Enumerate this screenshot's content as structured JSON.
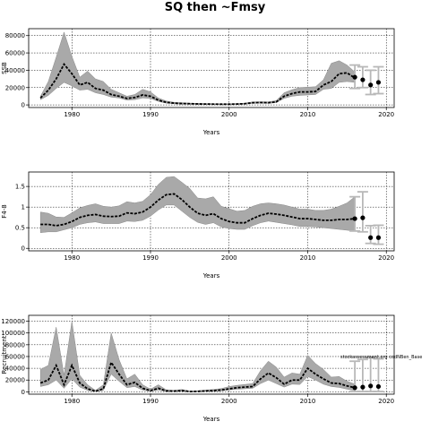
{
  "figure": {
    "title": "SQ then ~Fmsy"
  },
  "chart_data": [
    {
      "id": "ssb",
      "type": "line",
      "title": "",
      "xlabel": "Years",
      "ylabel": "SSB",
      "xlim": [
        1974.5,
        2021
      ],
      "ylim": [
        -3000,
        88000
      ],
      "xticks": [
        1980,
        1990,
        2000,
        2010,
        2020
      ],
      "yticks": [
        0,
        20000,
        40000,
        60000,
        80000
      ],
      "grid": true,
      "annotation": "",
      "series": [
        {
          "kind": "median",
          "x": [
            1976,
            1977,
            1978,
            1979,
            1980,
            1981,
            1982,
            1983,
            1984,
            1985,
            1986,
            1987,
            1988,
            1989,
            1990,
            1991,
            1992,
            1993,
            1994,
            1995,
            1996,
            1997,
            1998,
            1999,
            2000,
            2001,
            2002,
            2003,
            2004,
            2005,
            2006,
            2007,
            2008,
            2009,
            2010,
            2011,
            2012,
            2013,
            2014,
            2015,
            2016
          ],
          "y": [
            8000,
            17000,
            30000,
            47000,
            36000,
            23000,
            26000,
            19000,
            17000,
            12000,
            10000,
            7500,
            8500,
            11500,
            10000,
            5500,
            3000,
            2000,
            1600,
            1400,
            1100,
            1000,
            900,
            800,
            800,
            1000,
            1400,
            2500,
            2700,
            2500,
            3500,
            10000,
            13000,
            15000,
            15000,
            15500,
            23000,
            27000,
            36000,
            37000,
            31000
          ]
        },
        {
          "kind": "upper",
          "x": [
            1976,
            1977,
            1978,
            1979,
            1980,
            1981,
            1982,
            1983,
            1984,
            1985,
            1986,
            1987,
            1988,
            1989,
            1990,
            1991,
            1992,
            1993,
            1994,
            1995,
            1996,
            1997,
            1998,
            1999,
            2000,
            2001,
            2002,
            2003,
            2004,
            2005,
            2006,
            2007,
            2008,
            2009,
            2010,
            2011,
            2012,
            2013,
            2014,
            2015,
            2016
          ],
          "y": [
            10000,
            27000,
            55000,
            84000,
            56000,
            32000,
            39000,
            30000,
            27000,
            18000,
            14000,
            10000,
            12000,
            18000,
            15000,
            8000,
            4500,
            3000,
            2500,
            2000,
            1800,
            1500,
            1300,
            1200,
            1200,
            1500,
            2000,
            3500,
            3700,
            3500,
            5000,
            14000,
            17500,
            20000,
            20500,
            21000,
            29000,
            48000,
            51000,
            46000,
            38000
          ]
        },
        {
          "kind": "lower",
          "x": [
            1976,
            1977,
            1978,
            1979,
            1980,
            1981,
            1982,
            1983,
            1984,
            1985,
            1986,
            1987,
            1988,
            1989,
            1990,
            1991,
            1992,
            1993,
            1994,
            1995,
            1996,
            1997,
            1998,
            1999,
            2000,
            2001,
            2002,
            2003,
            2004,
            2005,
            2006,
            2007,
            2008,
            2009,
            2010,
            2011,
            2012,
            2013,
            2014,
            2015,
            2016
          ],
          "y": [
            6000,
            11000,
            19000,
            26000,
            22000,
            17000,
            18000,
            14000,
            12000,
            9000,
            8000,
            5500,
            6000,
            8000,
            7500,
            4000,
            2000,
            1300,
            1000,
            900,
            700,
            650,
            600,
            550,
            550,
            700,
            1000,
            1800,
            2000,
            1800,
            2600,
            7500,
            10000,
            11000,
            11500,
            12000,
            18000,
            19000,
            26000,
            27000,
            26000
          ]
        }
      ],
      "forecast": {
        "x": [
          2016,
          2017,
          2018,
          2019
        ],
        "y": [
          32000,
          29000,
          23000,
          26000
        ],
        "low": [
          19000,
          20000,
          12000,
          13000
        ],
        "high": [
          46000,
          44000,
          40000,
          44000
        ]
      }
    },
    {
      "id": "fbar",
      "type": "line",
      "title": "",
      "xlabel": "Years",
      "ylabel": "F4-8",
      "xlim": [
        1974.5,
        2021
      ],
      "ylim": [
        -0.06,
        1.85
      ],
      "xticks": [
        1980,
        1990,
        2000,
        2010,
        2020
      ],
      "yticks": [
        0,
        0.5,
        1,
        1.5
      ],
      "grid": true,
      "annotation": "",
      "series": [
        {
          "kind": "median",
          "x": [
            1976,
            1977,
            1978,
            1979,
            1980,
            1981,
            1982,
            1983,
            1984,
            1985,
            1986,
            1987,
            1988,
            1989,
            1990,
            1991,
            1992,
            1993,
            1994,
            1995,
            1996,
            1997,
            1998,
            1999,
            2000,
            2001,
            2002,
            2003,
            2004,
            2005,
            2006,
            2007,
            2008,
            2009,
            2010,
            2011,
            2012,
            2013,
            2014,
            2015,
            2016
          ],
          "y": [
            0.58,
            0.58,
            0.55,
            0.58,
            0.65,
            0.75,
            0.8,
            0.82,
            0.78,
            0.77,
            0.78,
            0.86,
            0.84,
            0.88,
            1.0,
            1.17,
            1.3,
            1.32,
            1.18,
            1.0,
            0.85,
            0.8,
            0.84,
            0.72,
            0.65,
            0.62,
            0.62,
            0.72,
            0.8,
            0.85,
            0.83,
            0.8,
            0.76,
            0.72,
            0.72,
            0.7,
            0.68,
            0.68,
            0.7,
            0.7,
            0.72
          ]
        },
        {
          "kind": "upper",
          "x": [
            1976,
            1977,
            1978,
            1979,
            1980,
            1981,
            1982,
            1983,
            1984,
            1985,
            1986,
            1987,
            1988,
            1989,
            1990,
            1991,
            1992,
            1993,
            1994,
            1995,
            1996,
            1997,
            1998,
            1999,
            2000,
            2001,
            2002,
            2003,
            2004,
            2005,
            2006,
            2007,
            2008,
            2009,
            2010,
            2011,
            2012,
            2013,
            2014,
            2015,
            2016
          ],
          "y": [
            0.88,
            0.85,
            0.76,
            0.75,
            0.86,
            0.98,
            1.04,
            1.08,
            1.02,
            1.0,
            1.03,
            1.13,
            1.1,
            1.14,
            1.3,
            1.55,
            1.72,
            1.74,
            1.6,
            1.45,
            1.22,
            1.2,
            1.25,
            1.02,
            0.96,
            0.9,
            0.92,
            1.02,
            1.08,
            1.1,
            1.08,
            1.05,
            1.0,
            0.95,
            0.95,
            0.92,
            0.92,
            0.95,
            1.02,
            1.1,
            1.25
          ]
        },
        {
          "kind": "lower",
          "x": [
            1976,
            1977,
            1978,
            1979,
            1980,
            1981,
            1982,
            1983,
            1984,
            1985,
            1986,
            1987,
            1988,
            1989,
            1990,
            1991,
            1992,
            1993,
            1994,
            1995,
            1996,
            1997,
            1998,
            1999,
            2000,
            2001,
            2002,
            2003,
            2004,
            2005,
            2006,
            2007,
            2008,
            2009,
            2010,
            2011,
            2012,
            2013,
            2014,
            2015,
            2016
          ],
          "y": [
            0.38,
            0.4,
            0.4,
            0.45,
            0.5,
            0.58,
            0.62,
            0.64,
            0.6,
            0.6,
            0.6,
            0.66,
            0.65,
            0.68,
            0.78,
            0.93,
            1.05,
            1.05,
            0.9,
            0.75,
            0.63,
            0.58,
            0.62,
            0.52,
            0.48,
            0.46,
            0.46,
            0.55,
            0.62,
            0.66,
            0.63,
            0.6,
            0.57,
            0.53,
            0.53,
            0.52,
            0.5,
            0.48,
            0.46,
            0.44,
            0.42
          ]
        }
      ],
      "forecast": {
        "x": [
          2016,
          2017,
          2018,
          2019
        ],
        "y": [
          0.72,
          0.74,
          0.26,
          0.26
        ],
        "low": [
          0.42,
          0.4,
          0.12,
          0.1
        ],
        "high": [
          1.25,
          1.37,
          0.55,
          0.56
        ]
      }
    },
    {
      "id": "recruitment",
      "type": "line",
      "title": "",
      "xlabel": "Years",
      "ylabel": "Recruitment",
      "xlim": [
        1974.5,
        2021
      ],
      "ylim": [
        -4000,
        130000
      ],
      "xticks": [
        1980,
        1990,
        2000,
        2010,
        2020
      ],
      "yticks": [
        0,
        20000,
        40000,
        60000,
        80000,
        100000,
        120000
      ],
      "grid": true,
      "annotation": "stockassessment.org  codNBen_Base",
      "series": [
        {
          "kind": "median",
          "x": [
            1976,
            1977,
            1978,
            1979,
            1980,
            1981,
            1982,
            1983,
            1984,
            1985,
            1986,
            1987,
            1988,
            1989,
            1990,
            1991,
            1992,
            1993,
            1994,
            1995,
            1996,
            1997,
            1998,
            1999,
            2000,
            2001,
            2002,
            2003,
            2004,
            2005,
            2006,
            2007,
            2008,
            2009,
            2010,
            2011,
            2012,
            2013,
            2014,
            2015,
            2016
          ],
          "y": [
            15000,
            20000,
            45000,
            12000,
            45000,
            15000,
            5000,
            1000,
            5000,
            50000,
            30000,
            12000,
            16000,
            6000,
            2000,
            6000,
            1500,
            1200,
            2000,
            500,
            800,
            1500,
            2000,
            3000,
            5000,
            7000,
            8000,
            9000,
            22000,
            32000,
            24000,
            13000,
            20000,
            20000,
            40000,
            30000,
            22000,
            15000,
            14000,
            10000,
            7000
          ]
        },
        {
          "kind": "upper",
          "x": [
            1976,
            1977,
            1978,
            1979,
            1980,
            1981,
            1982,
            1983,
            1984,
            1985,
            1986,
            1987,
            1988,
            1989,
            1990,
            1991,
            1992,
            1993,
            1994,
            1995,
            1996,
            1997,
            1998,
            1999,
            2000,
            2001,
            2002,
            2003,
            2004,
            2005,
            2006,
            2007,
            2008,
            2009,
            2010,
            2011,
            2012,
            2013,
            2014,
            2015,
            2016
          ],
          "y": [
            38000,
            45000,
            110000,
            28000,
            120000,
            28000,
            12000,
            2500,
            12000,
            100000,
            55000,
            22000,
            30000,
            12000,
            4500,
            12000,
            3500,
            2500,
            4000,
            1200,
            1800,
            3000,
            4000,
            5500,
            9000,
            11000,
            12500,
            14000,
            36000,
            52000,
            42000,
            25000,
            32000,
            30000,
            62000,
            48000,
            38000,
            25000,
            26000,
            18000,
            13000
          ]
        },
        {
          "kind": "lower",
          "x": [
            1976,
            1977,
            1978,
            1979,
            1980,
            1981,
            1982,
            1983,
            1984,
            1985,
            1986,
            1987,
            1988,
            1989,
            1990,
            1991,
            1992,
            1993,
            1994,
            1995,
            1996,
            1997,
            1998,
            1999,
            2000,
            2001,
            2002,
            2003,
            2004,
            2005,
            2006,
            2007,
            2008,
            2009,
            2010,
            2011,
            2012,
            2013,
            2014,
            2015,
            2016
          ],
          "y": [
            9000,
            12000,
            20000,
            6000,
            22000,
            8000,
            2500,
            500,
            2500,
            30000,
            18000,
            7000,
            9000,
            3000,
            1000,
            3000,
            700,
            600,
            1000,
            250,
            400,
            800,
            1000,
            1800,
            3200,
            4500,
            5200,
            6000,
            14000,
            20000,
            14000,
            8000,
            13000,
            12500,
            26000,
            20000,
            13000,
            9000,
            7500,
            4500,
            2500
          ]
        }
      ],
      "forecast": {
        "x": [
          2016,
          2017,
          2018,
          2019
        ],
        "y": [
          7000,
          8000,
          10000,
          9000
        ],
        "low": [
          500,
          500,
          500,
          500
        ],
        "high": [
          52000,
          55000,
          58000,
          56000
        ]
      }
    }
  ]
}
